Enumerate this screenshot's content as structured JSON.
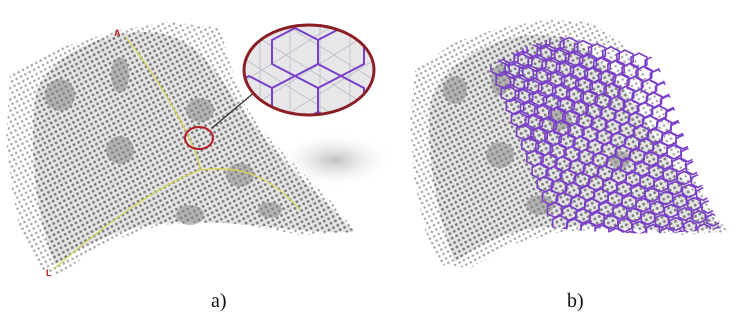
{
  "panels": [
    {
      "caption": "a)",
      "marker_start": "A",
      "marker_end": "L"
    },
    {
      "caption": "b)"
    }
  ],
  "colors": {
    "mesh": "#9a9a9a",
    "mesh_dark": "#6f6f6f",
    "shade": "#8c8c8c",
    "highlight": "#b51c24",
    "curve": "#d6d65a",
    "lattice": "#7a3fc8",
    "inset_bg": "#e7e7ea"
  },
  "icons": [
    "zoom-inset",
    "arrow",
    "hexagon-lattice"
  ]
}
